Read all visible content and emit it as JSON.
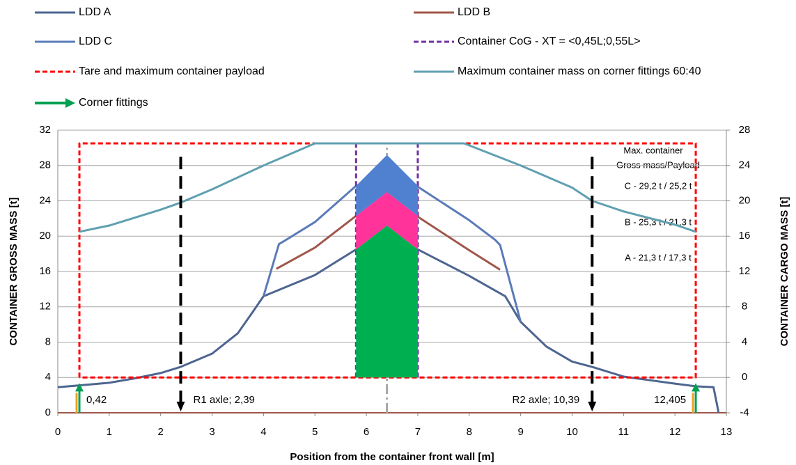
{
  "chart_data": {
    "type": "line",
    "xlabel": "Position from the container front wall [m]",
    "ylabel": "CONTAINER GROSS MASS [t]",
    "y2label": "CONTAINER CARGO MASS [t]",
    "xlim": [
      0,
      13
    ],
    "xticks": [
      0,
      1,
      2,
      3,
      4,
      5,
      6,
      7,
      8,
      9,
      10,
      11,
      12,
      13
    ],
    "ylim": [
      0,
      32
    ],
    "yticks": [
      0,
      4,
      8,
      12,
      16,
      20,
      24,
      28,
      32
    ],
    "y2lim": [
      -4,
      28
    ],
    "y2ticks": [
      -4,
      0,
      4,
      8,
      12,
      16,
      20,
      24,
      28
    ],
    "grid": true,
    "series": [
      {
        "name": "LDD A",
        "color": "#4d6590",
        "style": "solid",
        "x": [
          0,
          0.42,
          1,
          1.5,
          2,
          2.39,
          3,
          3.5,
          3.8,
          4.0,
          5.0,
          5.8,
          7.0,
          8.0,
          8.7,
          9.0,
          9.5,
          10.0,
          10.39,
          11.0,
          11.5,
          12.0,
          12.405,
          12.75,
          12.85
        ],
        "values": [
          2.9,
          3.1,
          3.4,
          3.9,
          4.5,
          5.2,
          6.7,
          9,
          11.5,
          13.2,
          15.6,
          18.5,
          18.5,
          15.5,
          13.2,
          10.3,
          7.5,
          5.8,
          5.2,
          4.1,
          3.7,
          3.3,
          3.0,
          2.9,
          0
        ]
      },
      {
        "name": "LDD B",
        "color": "#a0564a",
        "style": "solid",
        "x": [
          4.25,
          5.0,
          5.8,
          7.0,
          8.0,
          8.6
        ],
        "values": [
          16.3,
          18.7,
          22.3,
          22.2,
          18.4,
          16.2
        ]
      },
      {
        "name": "LDD C",
        "color": "#5a7bb8",
        "style": "solid",
        "x": [
          4.0,
          4.3,
          4.5,
          5.0,
          5.8,
          7.0,
          8.0,
          8.5,
          8.6,
          9.0
        ],
        "values": [
          13.2,
          19.1,
          19.8,
          21.6,
          25.7,
          25.6,
          21.8,
          19.6,
          19.0,
          10.3
        ]
      },
      {
        "name": "Container CoG - XT = <0,45L;0,55L>",
        "color": "#7030a0",
        "style": "dashed",
        "x": [
          5.8,
          5.8,
          6.4,
          7.0,
          7.0
        ],
        "values": [
          4,
          30.5,
          null,
          4,
          30.5
        ]
      },
      {
        "name": "Tare and maximum container payload",
        "color": "#ff0000",
        "style": "dashed",
        "x": [
          0.42,
          0.42,
          12.405,
          12.405,
          0.42
        ],
        "values": [
          4,
          30.5,
          30.5,
          4,
          4
        ]
      },
      {
        "name": "Maximum container mass on corner fittings 60:40",
        "color": "#5fa0b0",
        "style": "solid",
        "x": [
          0.42,
          1,
          2,
          2.39,
          3,
          4,
          5,
          7.9,
          9,
          10,
          10.39,
          11,
          12,
          12.405
        ],
        "values": [
          20.5,
          21.2,
          23,
          23.8,
          25.3,
          28,
          30.5,
          30.5,
          28,
          25.5,
          24,
          22.8,
          21.3,
          20.5
        ]
      }
    ],
    "regions": [
      {
        "color": "#00b050",
        "x": [
          5.8,
          6.4,
          7.0
        ],
        "upper": [
          18.5,
          21.2,
          18.5
        ],
        "lower": [
          4,
          4,
          4
        ]
      },
      {
        "color": "#ff3399",
        "x": [
          5.8,
          6.4,
          7.0
        ],
        "upper": [
          22.3,
          25,
          22.3
        ],
        "lower": [
          18.5,
          21.2,
          18.5
        ]
      },
      {
        "color": "#4f81d0",
        "x": [
          5.8,
          6.4,
          7.0
        ],
        "upper": [
          25.7,
          29.2,
          25.7
        ],
        "lower": [
          22.3,
          25,
          22.3
        ]
      }
    ],
    "centerline": {
      "x": 6.4,
      "y": [
        0,
        30
      ]
    },
    "corner_fittings": {
      "name": "Corner fittings",
      "color": "#00a050",
      "x": [
        0.42,
        12.405
      ],
      "value_labels": [
        "0,42",
        "12,405"
      ],
      "top": 3.2
    },
    "axles": {
      "x": [
        2.39,
        10.39
      ],
      "labels": [
        "R1 axle; 2,39",
        "R2 axle; 10,39"
      ],
      "top": 29
    },
    "annotations": [
      "Max. container",
      "Gross mass/Payload",
      "C - 29,2 t / 25,2 t",
      "B - 25,3 t / 21,3 t",
      "A - 21,3 t / 17,3 t"
    ]
  }
}
